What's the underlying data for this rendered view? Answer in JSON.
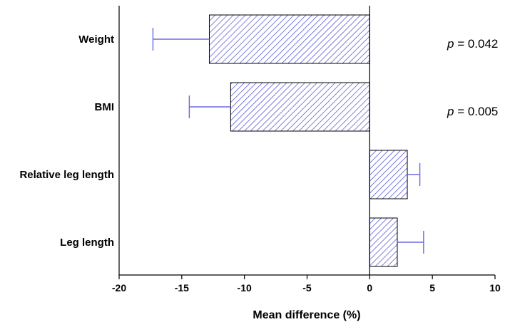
{
  "chart_data": {
    "type": "bar",
    "orientation": "horizontal",
    "categories": [
      "Weight",
      "BMI",
      "Relative leg length",
      "Leg length"
    ],
    "values": [
      -12.8,
      -11.1,
      3.0,
      2.2
    ],
    "error": [
      4.5,
      3.3,
      1.0,
      2.1
    ],
    "xlabel": "Mean difference (%)",
    "xlim": [
      -20,
      10
    ],
    "xticks": [
      -20,
      -15,
      -10,
      -5,
      0,
      5,
      10
    ],
    "xtick_labels": [
      "-20",
      "-15",
      "-10",
      "-5",
      "0",
      "5",
      "10"
    ],
    "grid": false,
    "legend": false,
    "colors": {
      "bar_hatch": "#4a4acc",
      "error_bar": "#6a6ae0",
      "axis": "#000000"
    },
    "annotations": [
      {
        "category": "Weight",
        "p_symbol": "p",
        "p_rest": " = 0.042"
      },
      {
        "category": "BMI",
        "p_symbol": "p",
        "p_rest": " = 0.005"
      }
    ]
  }
}
